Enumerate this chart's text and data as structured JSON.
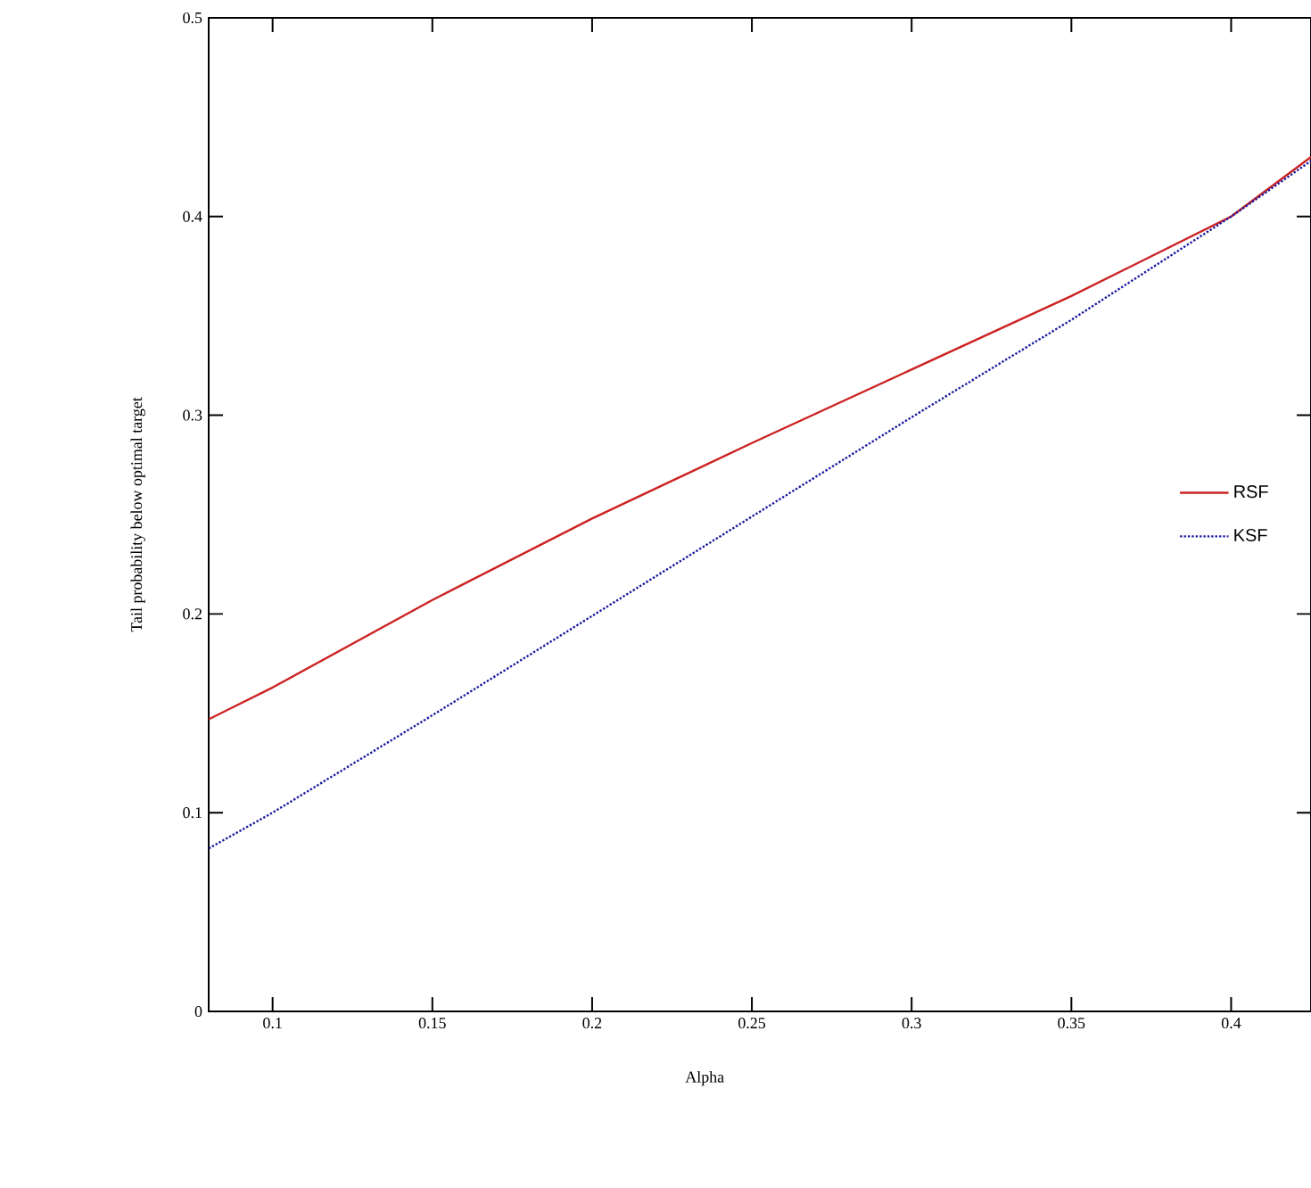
{
  "chart_data": {
    "type": "line",
    "xlabel": "Alpha",
    "ylabel": "Tail probability below optimal target",
    "x": [
      0.08,
      0.1,
      0.15,
      0.2,
      0.25,
      0.3,
      0.35,
      0.4,
      0.425
    ],
    "series": [
      {
        "name": "RSF",
        "color": "#cc2222",
        "line_style": "solid",
        "values": [
          0.147,
          0.163,
          0.207,
          0.248,
          0.286,
          0.323,
          0.36,
          0.4,
          0.43
        ]
      },
      {
        "name": "KSF",
        "color": "#1a1aa0",
        "line_style": "dotted",
        "values": [
          0.082,
          0.1,
          0.149,
          0.199,
          0.249,
          0.299,
          0.348,
          0.4,
          0.428
        ]
      }
    ],
    "xlim": [
      0.08,
      0.425
    ],
    "ylim": [
      0,
      0.5
    ],
    "xticks": [
      0.1,
      0.15,
      0.2,
      0.25,
      0.3,
      0.35,
      0.4
    ],
    "yticks": [
      0,
      0.1,
      0.2,
      0.3,
      0.4,
      0.5
    ],
    "grid": false,
    "legend": "right",
    "marker": "none"
  }
}
